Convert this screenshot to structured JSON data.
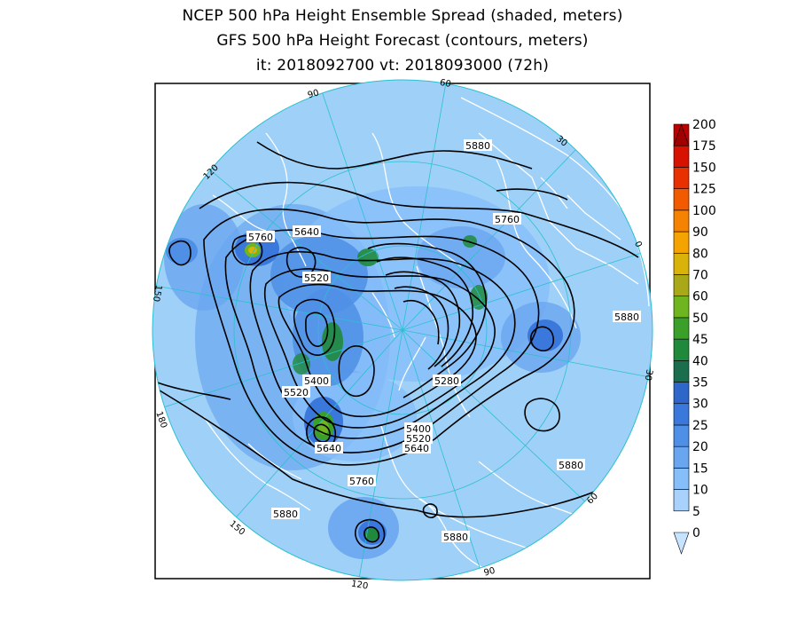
{
  "title": {
    "line1": "NCEP 500 hPa Height Ensemble Spread (shaded, meters)",
    "line2": "GFS 500 hPa Height Forecast (contours, meters)",
    "line3": "it: 2018092700       vt: 2018093000 (72h)"
  },
  "colorbar": {
    "levels": [
      "0",
      "5",
      "10",
      "15",
      "20",
      "25",
      "30",
      "35",
      "40",
      "45",
      "50",
      "60",
      "70",
      "80",
      "90",
      "100",
      "125",
      "150",
      "175",
      "200"
    ],
    "colors": [
      "#c6e4ff",
      "#a8d2fb",
      "#86befa",
      "#6aa6f0",
      "#4f8fe6",
      "#3b78db",
      "#2f66c9",
      "#1a6e4e",
      "#1f8a3c",
      "#3aa02a",
      "#6fb520",
      "#a8a818",
      "#d9b20a",
      "#f5a300",
      "#f58200",
      "#f25a00",
      "#e83000",
      "#d81200",
      "#c00000",
      "#a00000"
    ]
  },
  "map": {
    "ocean_color": "#9fd0f7",
    "land_outline_color": "#ffffff",
    "grid_color": "#2ac0d0",
    "contour_color": "#000000",
    "longitude_labels": [
      "60",
      "30",
      "0",
      "30",
      "60",
      "90",
      "120",
      "150",
      "180",
      "150",
      "120",
      "90"
    ],
    "contour_labels": [
      "5880",
      "5760",
      "5640",
      "5520",
      "5760",
      "5880",
      "5400",
      "5520",
      "5280",
      "5400",
      "5520",
      "5640",
      "5640",
      "5760",
      "5880",
      "5880",
      "5880"
    ]
  }
}
